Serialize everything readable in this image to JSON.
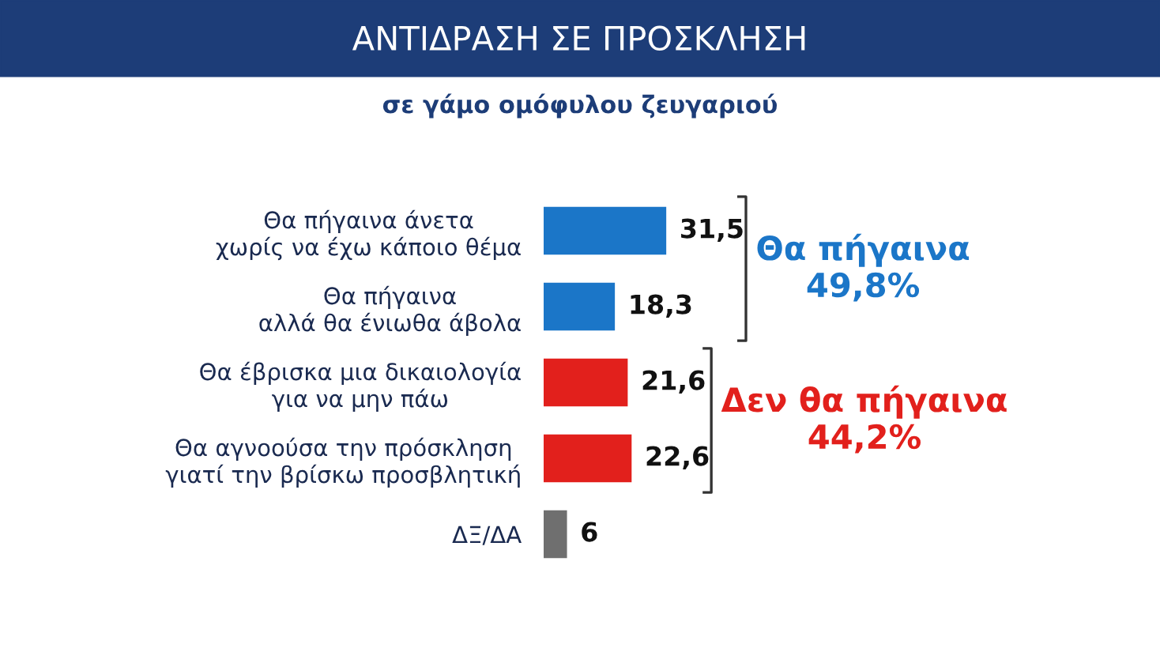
{
  "chart_data": {
    "type": "bar",
    "orientation": "horizontal",
    "title": "ΑΝΤΙΔΡΑΣΗ ΣΕ ΠΡΟΣΚΛΗΣΗ",
    "subtitle": "σε γάμο ομόφυλου ζευγαριού",
    "categories": [
      "Θα πήγαινα άνετα\nχωρίς να έχω κάποιο θέμα",
      "Θα πήγαινα\nαλλά θα ένιωθα άβολα",
      "Θα έβρισκα μια δικαιολογία\nγια να μην πάω",
      "Θα αγνοούσα την πρόσκληση\nγιατί την βρίσκω προσβλητική",
      "ΔΞ/ΔΑ"
    ],
    "values": [
      31.5,
      18.3,
      21.6,
      22.6,
      6
    ],
    "colors": [
      "#1b76c8",
      "#1b76c8",
      "#e2201c",
      "#e2201c",
      "#6f6f6f"
    ],
    "value_labels": [
      "31,5",
      "18,3",
      "21,6",
      "22,6",
      "6"
    ],
    "annotations": [
      "Θα πήγαινα\n49,8%",
      "Δεν θα πήγαινα\n44,2%"
    ]
  }
}
